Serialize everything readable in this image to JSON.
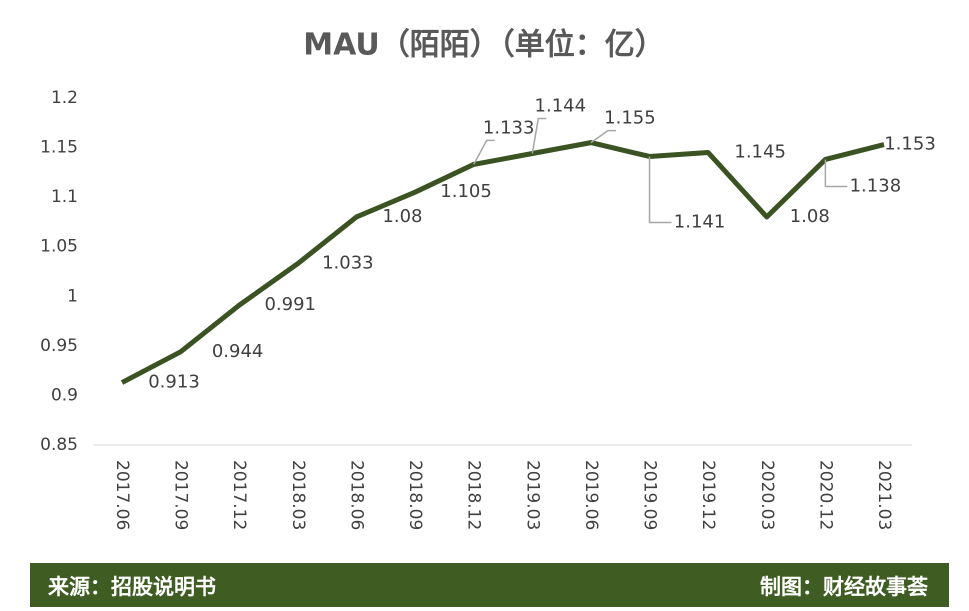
{
  "chart_data": {
    "type": "line",
    "title": "MAU（陌陌）（单位：亿）",
    "categories": [
      "2017.06",
      "2017.09",
      "2017.12",
      "2018.03",
      "2018.06",
      "2018.09",
      "2018.12",
      "2019.03",
      "2019.06",
      "2019.09",
      "2019.12",
      "2020.03",
      "2020.12",
      "2021.03"
    ],
    "series": [
      {
        "name": "MAU",
        "color": "#3b5323",
        "values": [
          0.913,
          0.944,
          0.991,
          1.033,
          1.08,
          1.105,
          1.133,
          1.144,
          1.155,
          1.141,
          1.145,
          1.08,
          1.138,
          1.153
        ]
      }
    ],
    "ylim": [
      0.85,
      1.2
    ],
    "yticks": [
      0.85,
      0.9,
      0.95,
      1,
      1.05,
      1.1,
      1.15,
      1.2
    ],
    "grid": false,
    "source": "来源：招股说明书",
    "credit": "制图：财经故事荟"
  }
}
